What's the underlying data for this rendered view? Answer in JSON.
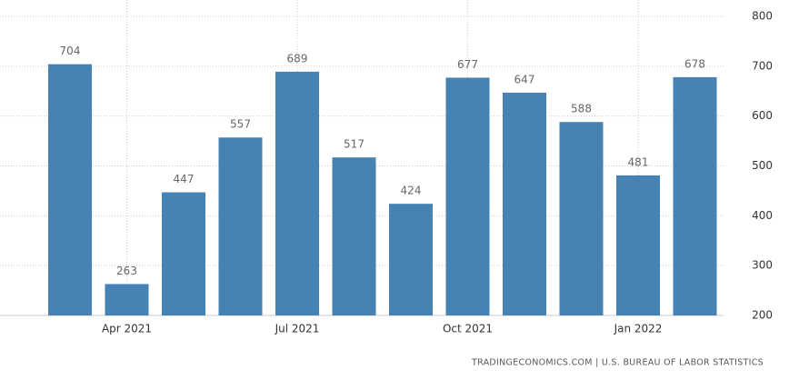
{
  "chart_data": {
    "type": "bar",
    "categories": [
      null,
      "Apr 2021",
      null,
      null,
      "Jul 2021",
      null,
      null,
      "Oct 2021",
      null,
      null,
      "Jan 2022",
      null
    ],
    "values": [
      704,
      263,
      447,
      557,
      689,
      517,
      424,
      677,
      647,
      588,
      481,
      678
    ],
    "color": "#4682b4",
    "ylim": [
      200,
      800
    ],
    "yticks": [
      200,
      300,
      400,
      500,
      600,
      700,
      800
    ],
    "grid": true,
    "source": "TRADINGECONOMICS.COM | U.S. BUREAU OF LABOR STATISTICS"
  }
}
